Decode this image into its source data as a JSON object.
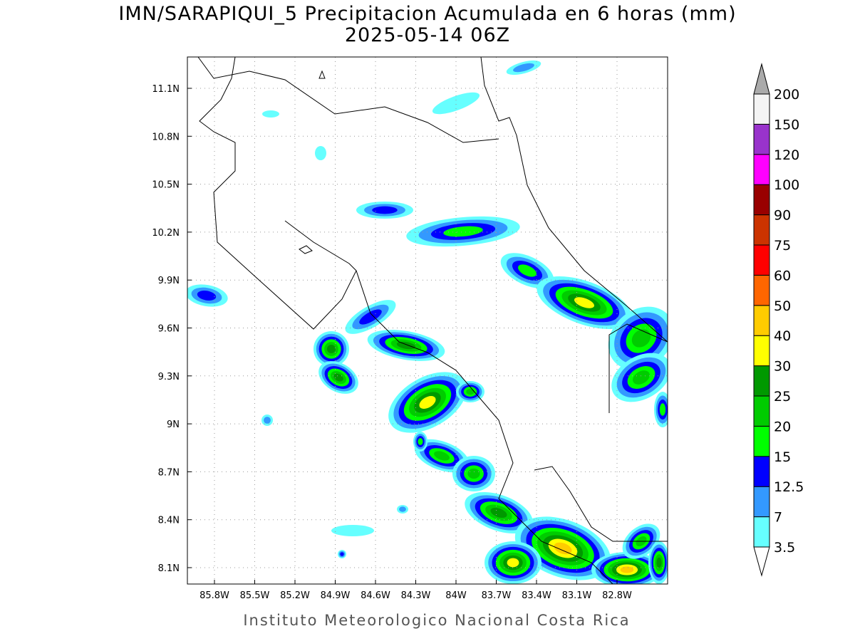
{
  "header": {
    "title": "IMN/SARAPIQUI_5 Precipitacion Acumulada en 6 horas (mm)",
    "subtitle": "2025-05-14 06Z"
  },
  "map": {
    "lon_labels": [
      "85.8W",
      "85.5W",
      "85.2W",
      "84.9W",
      "84.6W",
      "84.3W",
      "84W",
      "83.7W",
      "83.4W",
      "83.1W",
      "82.8W"
    ],
    "lat_labels": [
      "11.1N",
      "10.8N",
      "10.5N",
      "10.2N",
      "9.9N",
      "9.6N",
      "9.3N",
      "9N",
      "8.7N",
      "8.4N",
      "8.1N"
    ]
  },
  "colorbar": {
    "labels": [
      "3.5",
      "7",
      "12.5",
      "15",
      "20",
      "25",
      "30",
      "40",
      "50",
      "60",
      "75",
      "90",
      "100",
      "120",
      "150",
      "200"
    ],
    "colors": [
      "#66ffff",
      "#3399ff",
      "#0000ff",
      "#00ff00",
      "#00cc00",
      "#009900",
      "#ffff00",
      "#ffcc00",
      "#ff6600",
      "#ff0000",
      "#cc3300",
      "#990000",
      "#ff00ff",
      "#9933cc",
      "#f4f4f4"
    ]
  },
  "footer": "Instituto Meteorologico Nacional Costa Rica"
}
